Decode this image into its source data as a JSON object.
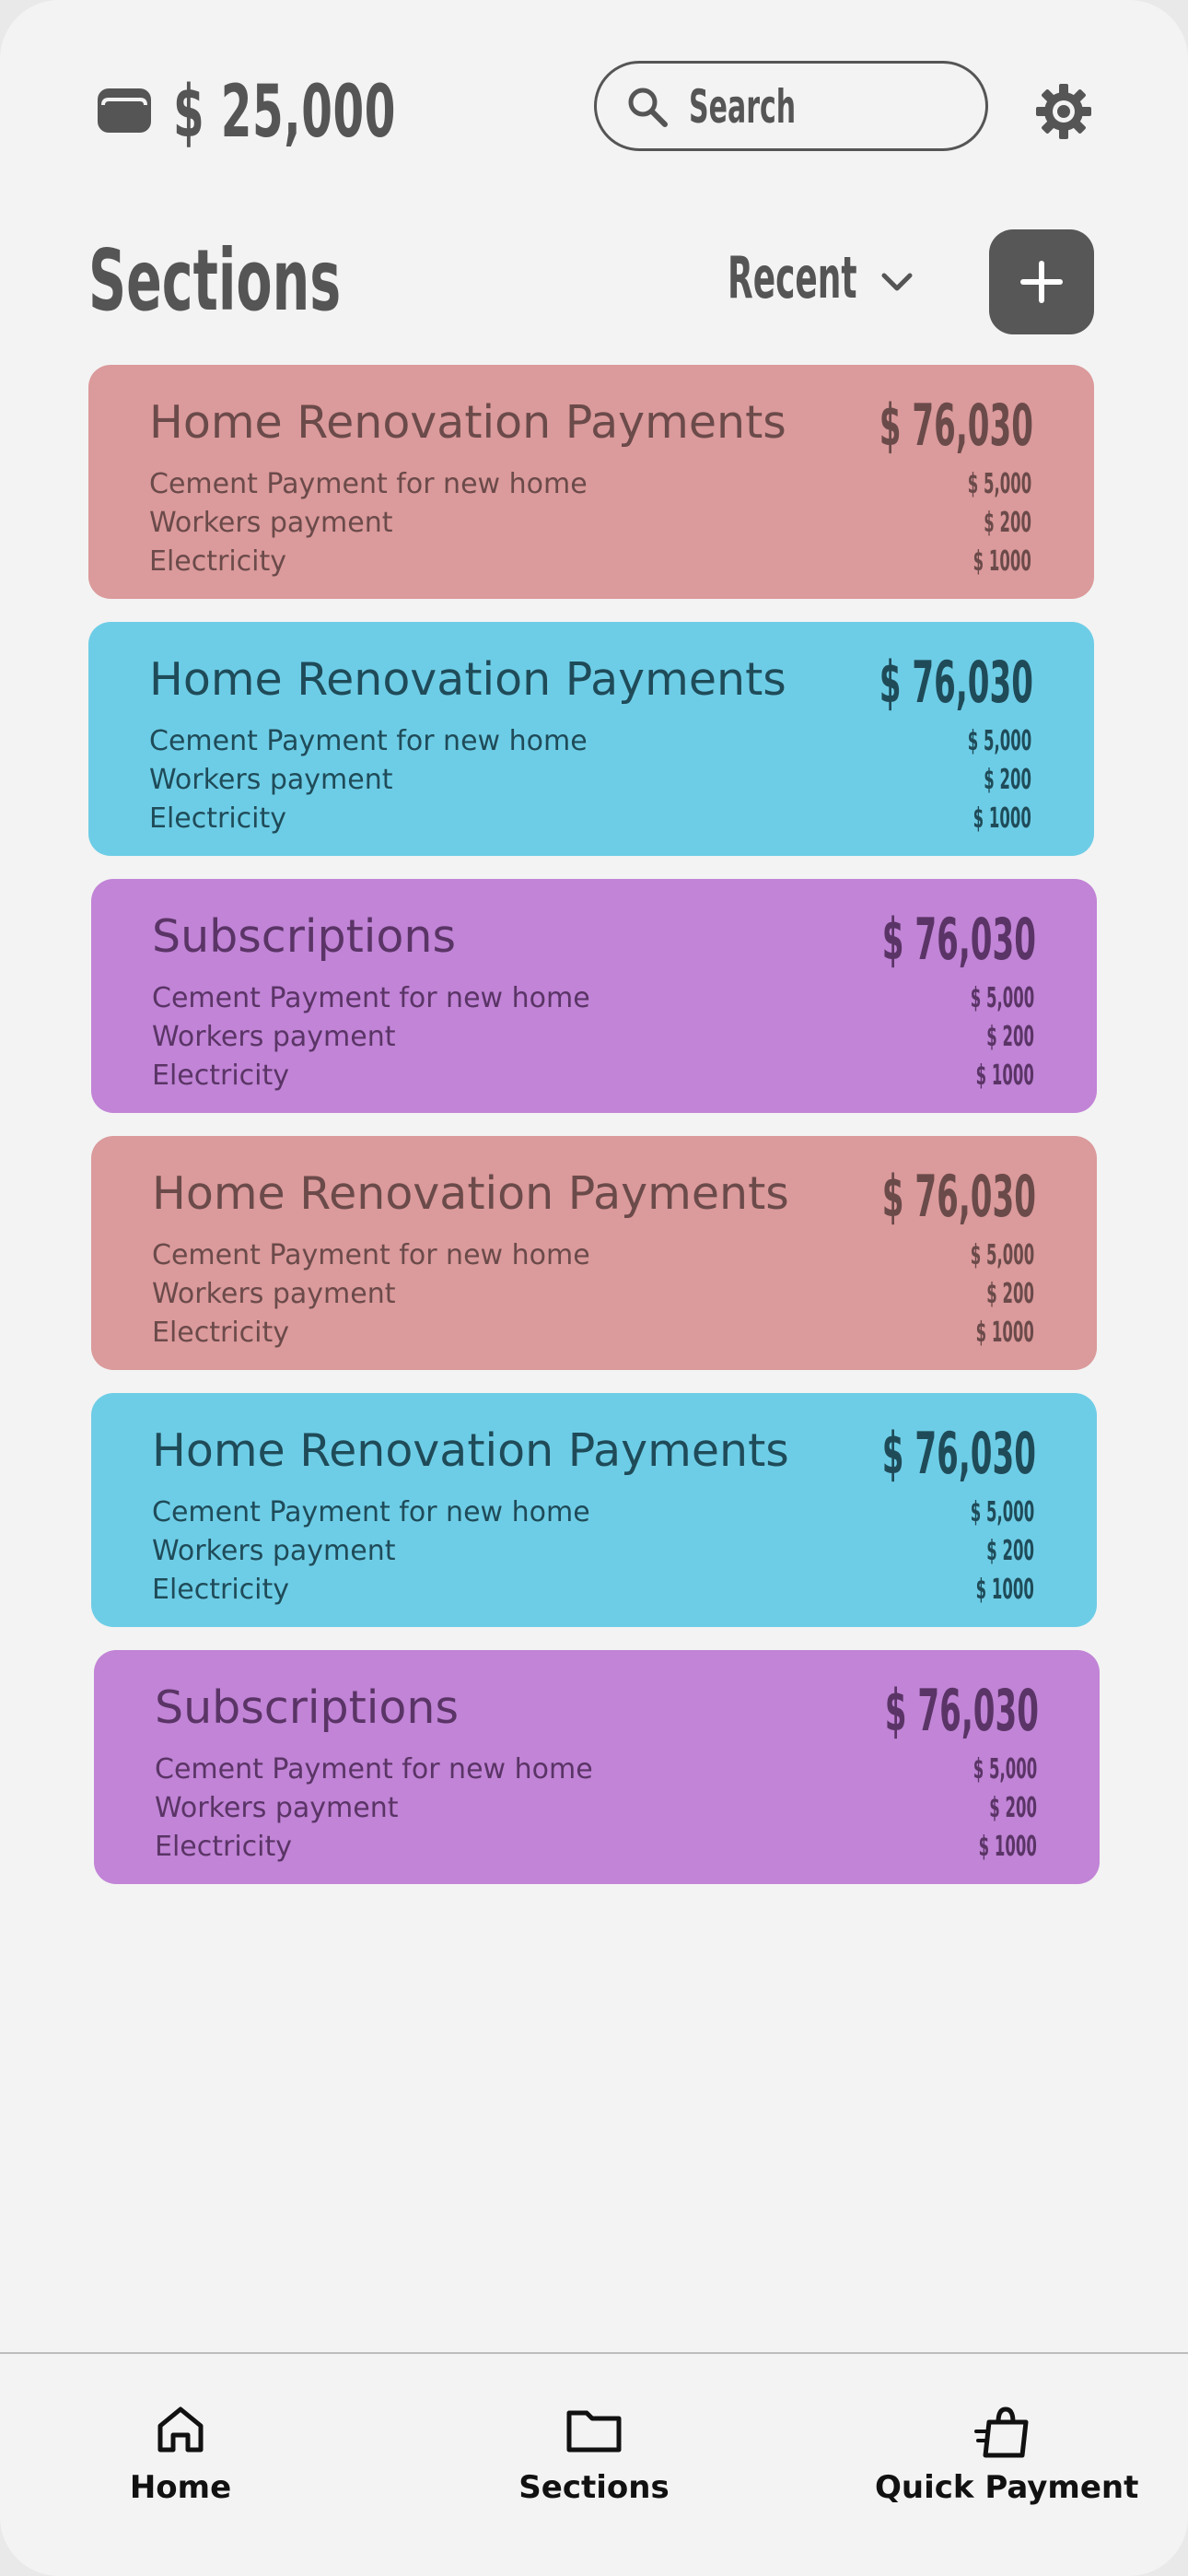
{
  "header": {
    "balance": "$ 25,000",
    "search_placeholder": "Search"
  },
  "section_header": {
    "title": "Sections",
    "sort_label": "Recent"
  },
  "cards": [
    {
      "title": "Home Renovation Payments",
      "total": "$ 76,030",
      "color": "#db9a9b",
      "items": [
        {
          "label": "Cement Payment for new home",
          "amount": "$ 5,000"
        },
        {
          "label": "Workers payment",
          "amount": "$ 200"
        },
        {
          "label": "Electricity",
          "amount": "$ 1000"
        }
      ]
    },
    {
      "title": "Home Renovation Payments",
      "total": "$ 76,030",
      "color": "#6ecde6",
      "items": [
        {
          "label": "Cement Payment for new home",
          "amount": "$ 5,000"
        },
        {
          "label": "Workers payment",
          "amount": "$ 200"
        },
        {
          "label": "Electricity",
          "amount": "$ 1000"
        }
      ]
    },
    {
      "title": "Subscriptions",
      "total": "$ 76,030",
      "color": "#c184d6",
      "items": [
        {
          "label": "Cement Payment for new home",
          "amount": "$ 5,000"
        },
        {
          "label": "Workers payment",
          "amount": "$ 200"
        },
        {
          "label": "Electricity",
          "amount": "$ 1000"
        }
      ]
    },
    {
      "title": "Home Renovation Payments",
      "total": "$ 76,030",
      "color": "#db9a9b",
      "items": [
        {
          "label": "Cement Payment for new home",
          "amount": "$ 5,000"
        },
        {
          "label": "Workers payment",
          "amount": "$ 200"
        },
        {
          "label": "Electricity",
          "amount": "$ 1000"
        }
      ]
    },
    {
      "title": "Home Renovation Payments",
      "total": "$ 76,030",
      "color": "#6ecde6",
      "items": [
        {
          "label": "Cement Payment for new home",
          "amount": "$ 5,000"
        },
        {
          "label": "Workers payment",
          "amount": "$ 200"
        },
        {
          "label": "Electricity",
          "amount": "$ 1000"
        }
      ]
    },
    {
      "title": "Subscriptions",
      "total": "$ 76,030",
      "color": "#c184d6",
      "items": [
        {
          "label": "Cement Payment for new home",
          "amount": "$ 5,000"
        },
        {
          "label": "Workers payment",
          "amount": "$ 200"
        },
        {
          "label": "Electricity",
          "amount": "$ 1000"
        }
      ]
    }
  ],
  "bottom_nav": {
    "items": [
      {
        "label": "Home",
        "icon": "home-icon"
      },
      {
        "label": "Sections",
        "icon": "folder-icon"
      },
      {
        "label": "Quick Payment",
        "icon": "shopping-bag-icon"
      }
    ]
  },
  "colors": {
    "background": "#f3f3f3",
    "dark": "#555555",
    "add_button": "#575757"
  }
}
